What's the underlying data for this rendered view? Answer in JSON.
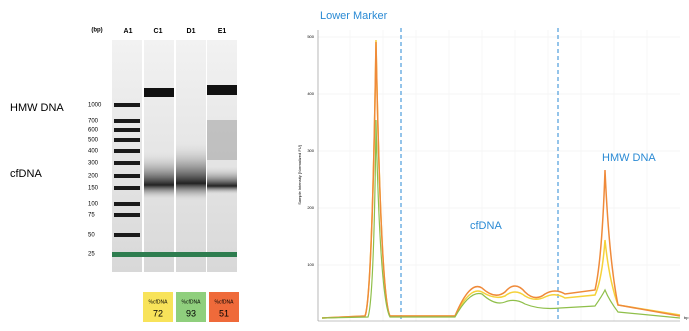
{
  "gel": {
    "unit_label": "(bp)",
    "lanes": [
      "A1",
      "C1",
      "D1",
      "E1"
    ],
    "ladder": [
      "1000",
      "700",
      "600",
      "500",
      "400",
      "300",
      "200",
      "150",
      "100",
      "75",
      "50",
      "25"
    ],
    "regions": [
      "HMW DNA",
      "cfDNA"
    ],
    "scores": [
      {
        "label": "%cfDNA",
        "value": "72"
      },
      {
        "label": "%cfDNA",
        "value": "93"
      },
      {
        "label": "%cfDNA",
        "value": "51"
      }
    ]
  },
  "electropherogram": {
    "y_label": "Sample Intensity [Normalized FU]",
    "x_label": "bp",
    "yticks": [
      "500",
      "400",
      "300",
      "200",
      "100"
    ],
    "annotations": [
      "Lower Marker",
      "cfDNA",
      "HMW DNA"
    ]
  }
}
